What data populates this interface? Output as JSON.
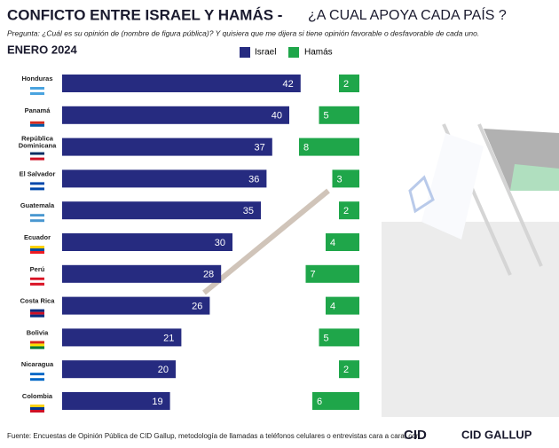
{
  "chart_data": {
    "type": "bar",
    "title": "CONFICTO ENTRE ISRAEL Y HAMÁS -",
    "title_suffix": "¿A CUAL APOYA CADA PAÍS ?",
    "subtitle": "Pregunta: ¿Cuál es su opinión de (nombre de figura pública)? Y quisiera que me dijera si tiene opinión favorable o desfavorable de cada uno.",
    "date": "ENERO 2024",
    "categories": [
      "Honduras",
      "Panamá",
      "República Dominicana",
      "El Salvador",
      "Guatemala",
      "Ecuador",
      "Perú",
      "Costa Rica",
      "Bolivia",
      "Nicaragua",
      "Colombia"
    ],
    "series": [
      {
        "name": "Israel",
        "color": "#262b80",
        "values": [
          42,
          40,
          37,
          36,
          35,
          30,
          28,
          26,
          21,
          20,
          19
        ]
      },
      {
        "name": "Hamás",
        "color": "#1fa64a",
        "values": [
          2,
          5,
          8,
          3,
          2,
          4,
          7,
          4,
          5,
          2,
          6
        ]
      }
    ],
    "source": "Fuente: Encuestas de Opinión Pública de CID Gallup, metodología de llamadas a teléfonos celulares o entrevistas cara a cara, con",
    "logo": "CID",
    "logo2": "CID GALLUP"
  }
}
